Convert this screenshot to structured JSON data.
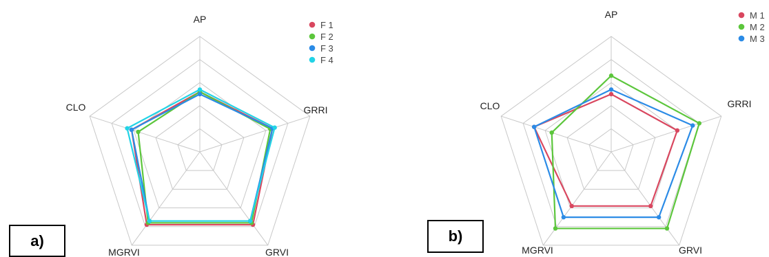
{
  "chart_data": [
    {
      "type": "radar",
      "axes": [
        "AP",
        "GRRI",
        "GRVI",
        "MGRVI",
        "CLO"
      ],
      "rlim": [
        0,
        1
      ],
      "grid": true,
      "grid_levels": 5,
      "legend_placement": "top-right",
      "panel_label": "a)",
      "series": [
        {
          "name": "F 1",
          "color": "#d9475f",
          "values": [
            0.52,
            0.66,
            0.78,
            0.78,
            0.62
          ]
        },
        {
          "name": "F 2",
          "color": "#5cc63c",
          "values": [
            0.52,
            0.64,
            0.76,
            0.76,
            0.56
          ]
        },
        {
          "name": "F 3",
          "color": "#2b8be6",
          "values": [
            0.5,
            0.66,
            0.74,
            0.74,
            0.62
          ]
        },
        {
          "name": "F 4",
          "color": "#22d3e6",
          "values": [
            0.54,
            0.68,
            0.74,
            0.74,
            0.66
          ]
        }
      ]
    },
    {
      "type": "radar",
      "axes": [
        "AP",
        "GRRI",
        "GRVI",
        "MGRVI",
        "CLO"
      ],
      "rlim": [
        0,
        1
      ],
      "grid": true,
      "grid_levels": 5,
      "legend_placement": "top-right",
      "panel_label": "b)",
      "series": [
        {
          "name": "M 1",
          "color": "#d9475f",
          "values": [
            0.5,
            0.6,
            0.58,
            0.58,
            0.7
          ]
        },
        {
          "name": "M 2",
          "color": "#5cc63c",
          "values": [
            0.66,
            0.8,
            0.82,
            0.82,
            0.54
          ]
        },
        {
          "name": "M 3",
          "color": "#2b8be6",
          "values": [
            0.54,
            0.74,
            0.7,
            0.7,
            0.7
          ]
        }
      ]
    }
  ]
}
